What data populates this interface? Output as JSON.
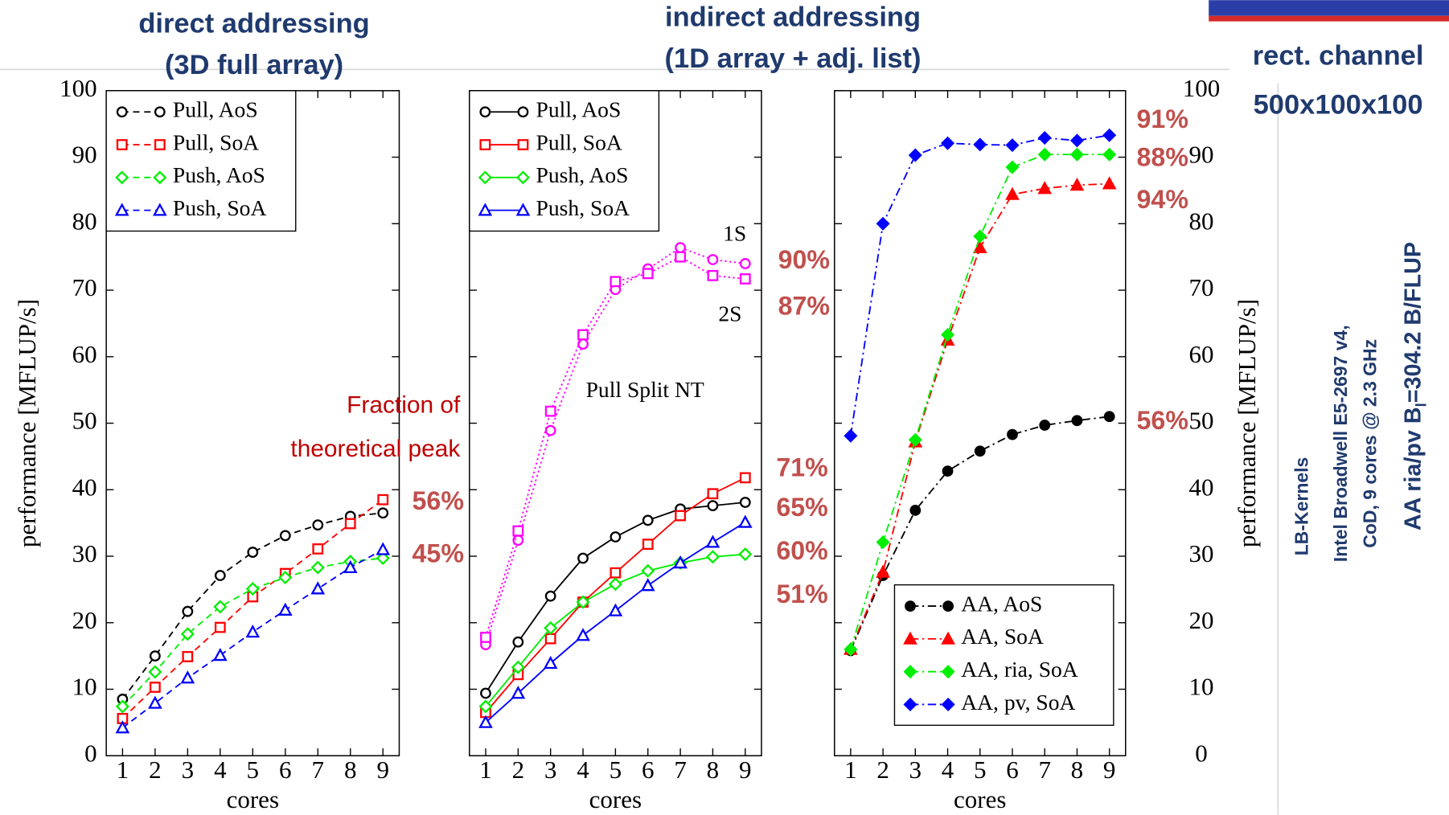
{
  "headings": [
    {
      "lines": [
        "direct addressing",
        "(3D full array)"
      ]
    },
    {
      "lines": [
        "indirect addressing",
        "(1D array + adj. list)"
      ]
    },
    {
      "lines": [
        "rect. channel",
        "500x100x100"
      ]
    }
  ],
  "side_notes": {
    "lines": [
      "LB-Kernels",
      "Intel Broadwell E5-2697 v4,",
      "CoD, 9 cores @ 2.3 GHz"
    ],
    "bandwidth": [
      "AA ria/pv B",
      "l",
      "=304.2 B/FLUP"
    ]
  },
  "chart_data": [
    {
      "type": "line",
      "xlabel": "cores",
      "ylabel": "performance [MFLUP/s]",
      "y_tick_side": "left",
      "x": [
        1,
        2,
        3,
        4,
        5,
        6,
        7,
        8,
        9
      ],
      "xlim": [
        0.5,
        9.5
      ],
      "ylim": [
        0,
        100
      ],
      "xticks": [
        1,
        2,
        3,
        4,
        5,
        6,
        7,
        8,
        9
      ],
      "yticks": [
        0,
        10,
        20,
        30,
        40,
        50,
        60,
        70,
        80,
        90,
        100
      ],
      "legend": "upper left",
      "marker_fill": "open",
      "series": [
        {
          "name": "Pull, AoS",
          "color": "#000000",
          "marker": "circle",
          "dash": "dashed",
          "values": [
            8.5,
            15,
            21.7,
            27.1,
            30.6,
            33.1,
            34.7,
            36,
            36.5
          ]
        },
        {
          "name": "Pull, SoA",
          "color": "#ff0000",
          "marker": "square",
          "dash": "dashed",
          "values": [
            5.6,
            10.3,
            14.9,
            19.3,
            23.9,
            27.4,
            31.1,
            34.9,
            38.5
          ]
        },
        {
          "name": "Push, AoS",
          "color": "#00ee00",
          "marker": "diamond",
          "dash": "dashed",
          "values": [
            7.4,
            12.6,
            18.3,
            22.4,
            25.1,
            26.8,
            28.3,
            29.2,
            29.7
          ]
        },
        {
          "name": "Push, SoA",
          "color": "#0000ff",
          "marker": "triangle",
          "dash": "dashed",
          "values": [
            4.2,
            7.9,
            11.7,
            15.1,
            18.6,
            21.9,
            25.1,
            28.3,
            31
          ]
        }
      ],
      "annotations": [
        "Fraction of",
        "theoretical peak"
      ],
      "peak_fractions": {
        "values": [
          56,
          45
        ],
        "value_labels": [
          "56%",
          "45%"
        ]
      }
    },
    {
      "type": "line",
      "xlabel": "cores",
      "y_tick_side": "none",
      "x": [
        1,
        2,
        3,
        4,
        5,
        6,
        7,
        8,
        9
      ],
      "xlim": [
        0.5,
        9.5
      ],
      "ylim": [
        0,
        100
      ],
      "xticks": [
        1,
        2,
        3,
        4,
        5,
        6,
        7,
        8,
        9
      ],
      "yticks": [
        0,
        10,
        20,
        30,
        40,
        50,
        60,
        70,
        80,
        90,
        100
      ],
      "legend": "upper left",
      "marker_fill": "open",
      "series": [
        {
          "name": "Pull, AoS",
          "color": "#000000",
          "marker": "circle",
          "dash": "solid",
          "values": [
            9.4,
            17.1,
            24,
            29.7,
            32.9,
            35.4,
            37.1,
            37.6,
            38.1
          ]
        },
        {
          "name": "Pull, SoA",
          "color": "#ff0000",
          "marker": "square",
          "dash": "solid",
          "values": [
            6.5,
            12.2,
            17.6,
            23.1,
            27.5,
            31.8,
            36.1,
            39.4,
            41.8
          ]
        },
        {
          "name": "Push, AoS",
          "color": "#00ee00",
          "marker": "diamond",
          "dash": "solid",
          "values": [
            7.4,
            13.3,
            19.2,
            23.1,
            25.8,
            27.8,
            29,
            29.9,
            30.3
          ]
        },
        {
          "name": "Push, SoA",
          "color": "#0000ff",
          "marker": "triangle",
          "dash": "solid",
          "values": [
            5,
            9.4,
            13.9,
            18.1,
            21.8,
            25.6,
            29,
            32.1,
            35.1
          ]
        },
        {
          "name": "1S",
          "legend": false,
          "color": "#ff00ff",
          "marker": "circle",
          "dash": "dotted",
          "values": [
            16.7,
            32.4,
            48.9,
            61.9,
            70.1,
            73.2,
            76.4,
            74.6,
            74
          ]
        },
        {
          "name": "2S",
          "legend": false,
          "color": "#ff00ff",
          "marker": "square",
          "dash": "dotted",
          "values": [
            17.8,
            33.8,
            51.8,
            63.3,
            71.3,
            72.5,
            75,
            72.2,
            71.7
          ]
        }
      ],
      "annotations": [
        "Pull Split NT"
      ],
      "peak_fractions": {
        "values": [
          90,
          87,
          71,
          65,
          60,
          51
        ],
        "value_labels": [
          "90%",
          "87%",
          "71%",
          "65%",
          "60%",
          "51%"
        ]
      }
    },
    {
      "type": "line",
      "xlabel": "cores",
      "ylabel": "performance [MFLUP/s]",
      "y_tick_side": "right",
      "x": [
        1,
        2,
        3,
        4,
        5,
        6,
        7,
        8,
        9
      ],
      "xlim": [
        0.5,
        9.5
      ],
      "ylim": [
        0,
        100
      ],
      "xticks": [
        1,
        2,
        3,
        4,
        5,
        6,
        7,
        8,
        9
      ],
      "yticks": [
        0,
        10,
        20,
        30,
        40,
        50,
        60,
        70,
        80,
        90,
        100
      ],
      "legend": "lower right",
      "marker_fill": "filled",
      "series": [
        {
          "name": "AA, AoS",
          "color": "#000000",
          "marker": "circle",
          "dash": "dashdot",
          "values": [
            15.8,
            27.1,
            36.9,
            42.8,
            45.8,
            48.3,
            49.7,
            50.4,
            51
          ]
        },
        {
          "name": "AA, SoA",
          "color": "#ff0000",
          "marker": "triangle",
          "dash": "dashdot",
          "values": [
            16,
            27.6,
            47.2,
            62.5,
            76.4,
            84.4,
            85.3,
            85.8,
            86
          ]
        },
        {
          "name": "AA, ria, SoA",
          "color": "#00ee00",
          "marker": "diamond",
          "dash": "dashdot",
          "values": [
            16,
            32.1,
            47.5,
            63.3,
            78.1,
            88.5,
            90.4,
            90.4,
            90.4
          ]
        },
        {
          "name": "AA, pv, SoA",
          "color": "#0000ff",
          "marker": "diamond",
          "dash": "dashdot",
          "values": [
            48.1,
            80,
            90.3,
            92.1,
            91.9,
            91.8,
            92.9,
            92.5,
            93.3
          ]
        }
      ],
      "annotations": [],
      "peak_fractions": {
        "values": [
          91,
          88,
          94,
          56
        ],
        "value_labels": [
          "91%",
          "88%",
          "94%",
          "56%"
        ]
      }
    }
  ]
}
